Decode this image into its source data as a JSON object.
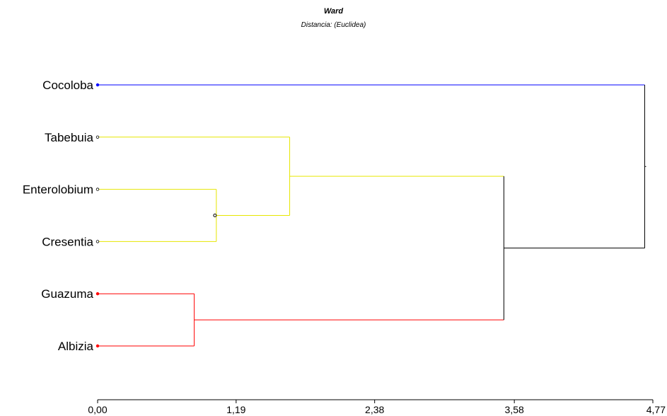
{
  "chart_data": {
    "type": "dendrogram",
    "title": "Ward",
    "subtitle": "Distancia: (Euclidea)",
    "xlim": [
      0,
      4.77
    ],
    "x_ticks": [
      "0,00",
      "1,19",
      "2,38",
      "3,58",
      "4,77"
    ],
    "x_tick_values": [
      0,
      1.19,
      2.38,
      3.58,
      4.77
    ],
    "leaves": [
      "Cocoloba",
      "Tabebuia",
      "Enterolobium",
      "Cresentia",
      "Guazuma",
      "Albizia"
    ],
    "leaf_colors": [
      "#0000ff",
      "#e6e600",
      "#e6e600",
      "#e6e600",
      "#ff0000",
      "#ff0000"
    ],
    "merges": [
      {
        "id": "m1",
        "children": [
          "Enterolobium",
          "Cresentia"
        ],
        "height": 1.02,
        "color": "#e6e600"
      },
      {
        "id": "m2",
        "children": [
          "Guazuma",
          "Albizia"
        ],
        "height": 0.83,
        "color": "#ff0000"
      },
      {
        "id": "m3",
        "children": [
          "Tabebuia",
          "m1"
        ],
        "height": 1.65,
        "color": "#e6e600"
      },
      {
        "id": "m4",
        "children": [
          "m3",
          "m2"
        ],
        "height": 3.49,
        "color": "#000000"
      },
      {
        "id": "m5",
        "children": [
          "Cocoloba",
          "m4"
        ],
        "height": 4.7,
        "color": "#000000"
      }
    ]
  }
}
